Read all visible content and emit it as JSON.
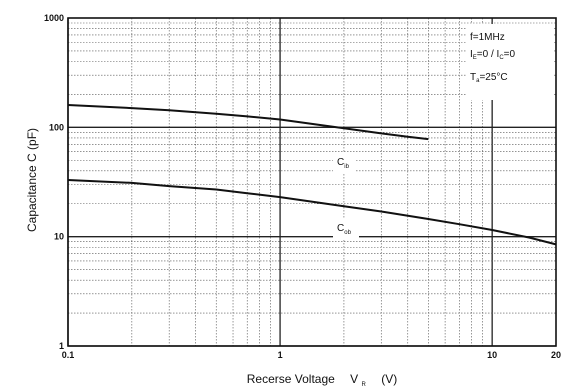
{
  "chart_data": {
    "type": "line",
    "xlabel": "Recerse Voltage",
    "xlabel_symbol": "V",
    "xlabel_symbol_sub": "R",
    "xlabel_unit": "(V)",
    "ylabel": "Capacitance C  (pF)",
    "x_scale": "log",
    "y_scale": "log",
    "xlim": [
      0.1,
      20
    ],
    "ylim": [
      1,
      1000
    ],
    "grid": true,
    "x_ticks": [
      {
        "value": 0.1,
        "label": "0.1"
      },
      {
        "value": 1,
        "label": "1"
      },
      {
        "value": 10,
        "label": "10"
      },
      {
        "value": 20,
        "label": "20"
      }
    ],
    "y_ticks": [
      {
        "value": 1,
        "label": "1"
      },
      {
        "value": 10,
        "label": "10"
      },
      {
        "value": 100,
        "label": "100"
      },
      {
        "value": 1000,
        "label": "1000"
      }
    ],
    "series": [
      {
        "name": "C",
        "name_sub": "ib",
        "x": [
          0.1,
          0.2,
          0.3,
          0.5,
          0.7,
          1,
          1.5,
          2,
          3,
          4,
          5
        ],
        "y": [
          160,
          150,
          143,
          133,
          126,
          118,
          106,
          98,
          88,
          82,
          78
        ]
      },
      {
        "name": "C",
        "name_sub": "ob",
        "x": [
          0.1,
          0.2,
          0.3,
          0.5,
          0.7,
          1,
          2,
          3,
          5,
          7,
          10,
          15,
          20
        ],
        "y": [
          33,
          31,
          29,
          27,
          25,
          23,
          19,
          17,
          14.5,
          13,
          11.5,
          9.8,
          8.5
        ]
      }
    ],
    "annotations": [
      {
        "main": "f=1MHz",
        "sub1": "",
        "mid": "",
        "sub2": "",
        "tail": ""
      },
      {
        "main": "I",
        "sub1": "E",
        "mid": "=0 / I",
        "sub2": "C",
        "tail": "=0"
      },
      {
        "main": "T",
        "sub1": "a",
        "mid": "=25°C",
        "sub2": "",
        "tail": ""
      }
    ]
  }
}
